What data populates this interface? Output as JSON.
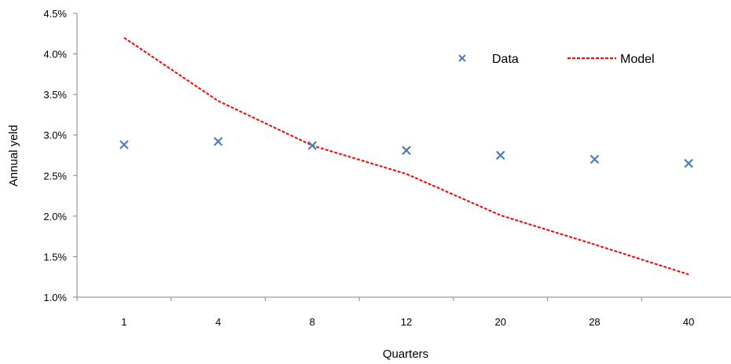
{
  "chart_data": {
    "type": "line",
    "title": "",
    "xlabel": "Quarters",
    "ylabel": "Annual yeld",
    "categories": [
      "1",
      "4",
      "8",
      "12",
      "20",
      "28",
      "40"
    ],
    "yticks": [
      "1.0%",
      "1.5%",
      "2.0%",
      "2.5%",
      "3.0%",
      "3.5%",
      "4.0%",
      "4.5%"
    ],
    "ylim": [
      1.0,
      4.5
    ],
    "grid": false,
    "legend": "top-right",
    "series": [
      {
        "name": "Data",
        "type": "scatter",
        "marker": "x",
        "color": "#4a7ebb",
        "values": [
          2.88,
          2.92,
          2.87,
          2.81,
          2.75,
          2.7,
          2.65
        ]
      },
      {
        "name": "Model",
        "type": "line",
        "style": "dashed",
        "color": "#ff0000",
        "values": [
          4.2,
          3.42,
          2.87,
          2.52,
          2.01,
          1.65,
          1.28
        ]
      }
    ]
  }
}
